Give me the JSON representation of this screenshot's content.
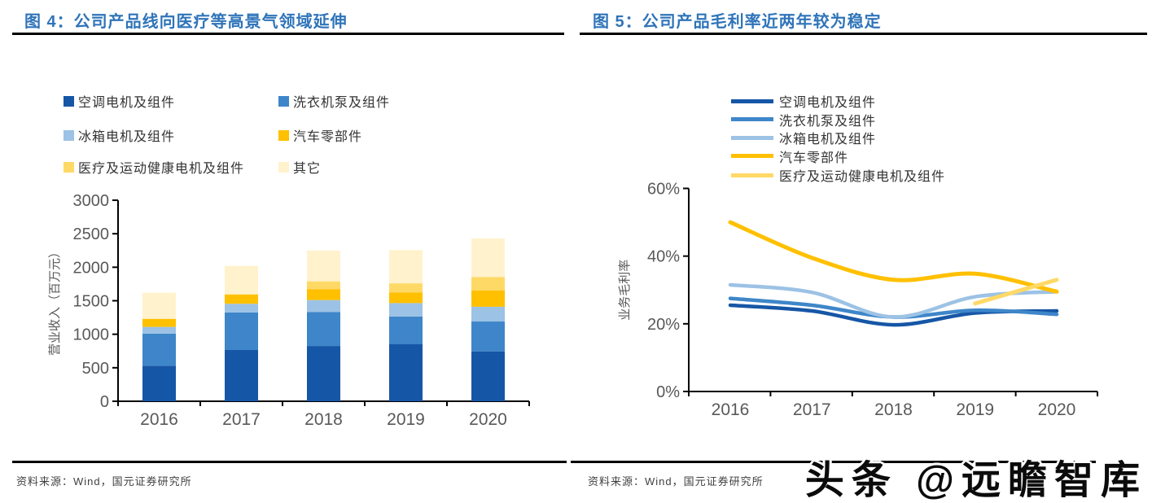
{
  "header": {
    "fig4_title": "图 4：公司产品线向医疗等高景气领域延伸",
    "fig5_title": "图 5：公司产品毛利率近两年较为稳定"
  },
  "footer": {
    "left_source": "资料来源：Wind，国元证券研究所",
    "right_source": "资料来源：Wind，国元证券研究所",
    "watermark": "头条 @远瞻智库"
  },
  "colors": {
    "title_blue": "#2F74B9",
    "axis_label_gray": "#595959",
    "legend_text": "#333333",
    "rule_black": "#000000",
    "air_conditioner_dark_blue": "#1656A6",
    "washer_medium_blue": "#3E86C9",
    "fridge_light_blue": "#9CC2E5",
    "auto_parts_orange": "#FFC000",
    "medical_gold": "#FFD966",
    "other_cream": "#FFF2CC"
  },
  "chart_data": [
    {
      "type": "bar",
      "stacked": true,
      "title": "图 4：公司产品线向医疗等高景气领域延伸",
      "categories": [
        "2016",
        "2017",
        "2018",
        "2019",
        "2020"
      ],
      "series": [
        {
          "name": "空调电机及组件",
          "color": "#1656A6",
          "values": [
            530,
            765,
            825,
            855,
            745
          ]
        },
        {
          "name": "洗衣机泵及组件",
          "color": "#3E86C9",
          "values": [
            480,
            560,
            505,
            410,
            445
          ]
        },
        {
          "name": "冰箱电机及组件",
          "color": "#9CC2E5",
          "values": [
            100,
            130,
            180,
            200,
            220
          ]
        },
        {
          "name": "汽车零部件",
          "color": "#FFC000",
          "values": [
            120,
            140,
            160,
            160,
            245
          ]
        },
        {
          "name": "医疗及运动健康电机及组件",
          "color": "#FFD966",
          "values": [
            0,
            0,
            120,
            135,
            200
          ]
        },
        {
          "name": "其它",
          "color": "#FFF2CC",
          "values": [
            390,
            425,
            460,
            495,
            575
          ]
        }
      ],
      "totals": [
        1620,
        2020,
        2250,
        2255,
        2430
      ],
      "xlabel": "",
      "ylabel": "营业收入（百万元）",
      "ylim": [
        0,
        3000
      ],
      "yticks": [
        0,
        500,
        1000,
        1500,
        2000,
        2500,
        3000
      ],
      "grid": false,
      "legend_position": "top-left-two-columns",
      "source": "资料来源：Wind，国元证券研究所"
    },
    {
      "type": "line",
      "title": "图 5：公司产品毛利率近两年较为稳定",
      "x": [
        "2016",
        "2017",
        "2018",
        "2019",
        "2020"
      ],
      "series": [
        {
          "name": "空调电机及组件",
          "color": "#1656A6",
          "values": [
            25.5,
            23.8,
            19.7,
            23.2,
            23.8
          ]
        },
        {
          "name": "洗衣机泵及组件",
          "color": "#3E86C9",
          "values": [
            27.5,
            25.5,
            22.0,
            24.0,
            22.8
          ]
        },
        {
          "name": "冰箱电机及组件",
          "color": "#9CC2E5",
          "values": [
            31.5,
            29.3,
            22.0,
            28.0,
            29.5
          ]
        },
        {
          "name": "汽车零部件",
          "color": "#FFC000",
          "values": [
            50.0,
            39.5,
            33.0,
            34.8,
            29.5
          ]
        },
        {
          "name": "医疗及运动健康电机及组件",
          "color": "#FFD966",
          "values": [
            null,
            null,
            null,
            26.0,
            33.0
          ]
        }
      ],
      "xlabel": "",
      "ylabel": "业务毛利率",
      "ylim": [
        0,
        60
      ],
      "ytick_labels": [
        "0%",
        "20%",
        "40%",
        "60%"
      ],
      "yticks": [
        0,
        20,
        40,
        60
      ],
      "grid": false,
      "legend_position": "top",
      "source": "资料来源：Wind，国元证券研究所"
    }
  ]
}
